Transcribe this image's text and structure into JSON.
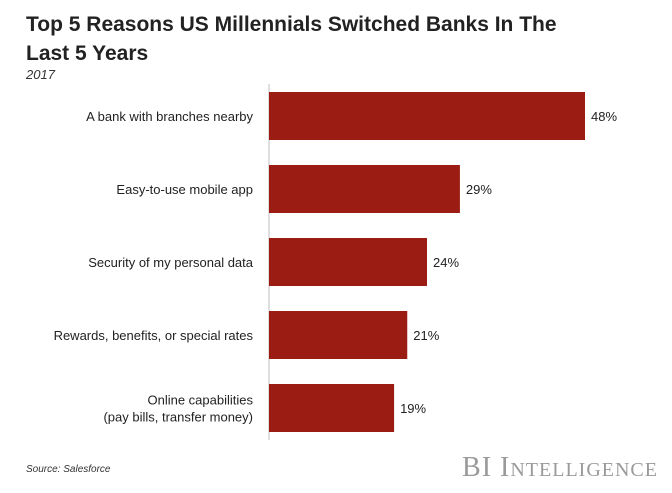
{
  "chart_data": {
    "type": "bar",
    "orientation": "horizontal",
    "title": "Top 5 Reasons US Millennials Switched Banks In The Last 5 Years",
    "subtitle": "2017",
    "categories": [
      "A bank with branches nearby",
      "Easy-to-use mobile app",
      "Security of my personal data",
      "Rewards, benefits, or special rates",
      "Online capabilities\n(pay bills, transfer money)"
    ],
    "values": [
      48,
      29,
      24,
      21,
      19
    ],
    "value_labels": [
      "48%",
      "29%",
      "24%",
      "21%",
      "19%"
    ],
    "xlim": [
      0,
      48
    ],
    "xlabel": "",
    "ylabel": "",
    "grid": false,
    "bar_color": "#9b1c12"
  },
  "footer": {
    "source": "Source: Salesforce",
    "brand_first": "BI",
    "brand_second": "Intelligence"
  },
  "colors": {
    "bar": "#9b1c12",
    "axis": "#bfbfbf",
    "brand": "#9a9a9a"
  }
}
